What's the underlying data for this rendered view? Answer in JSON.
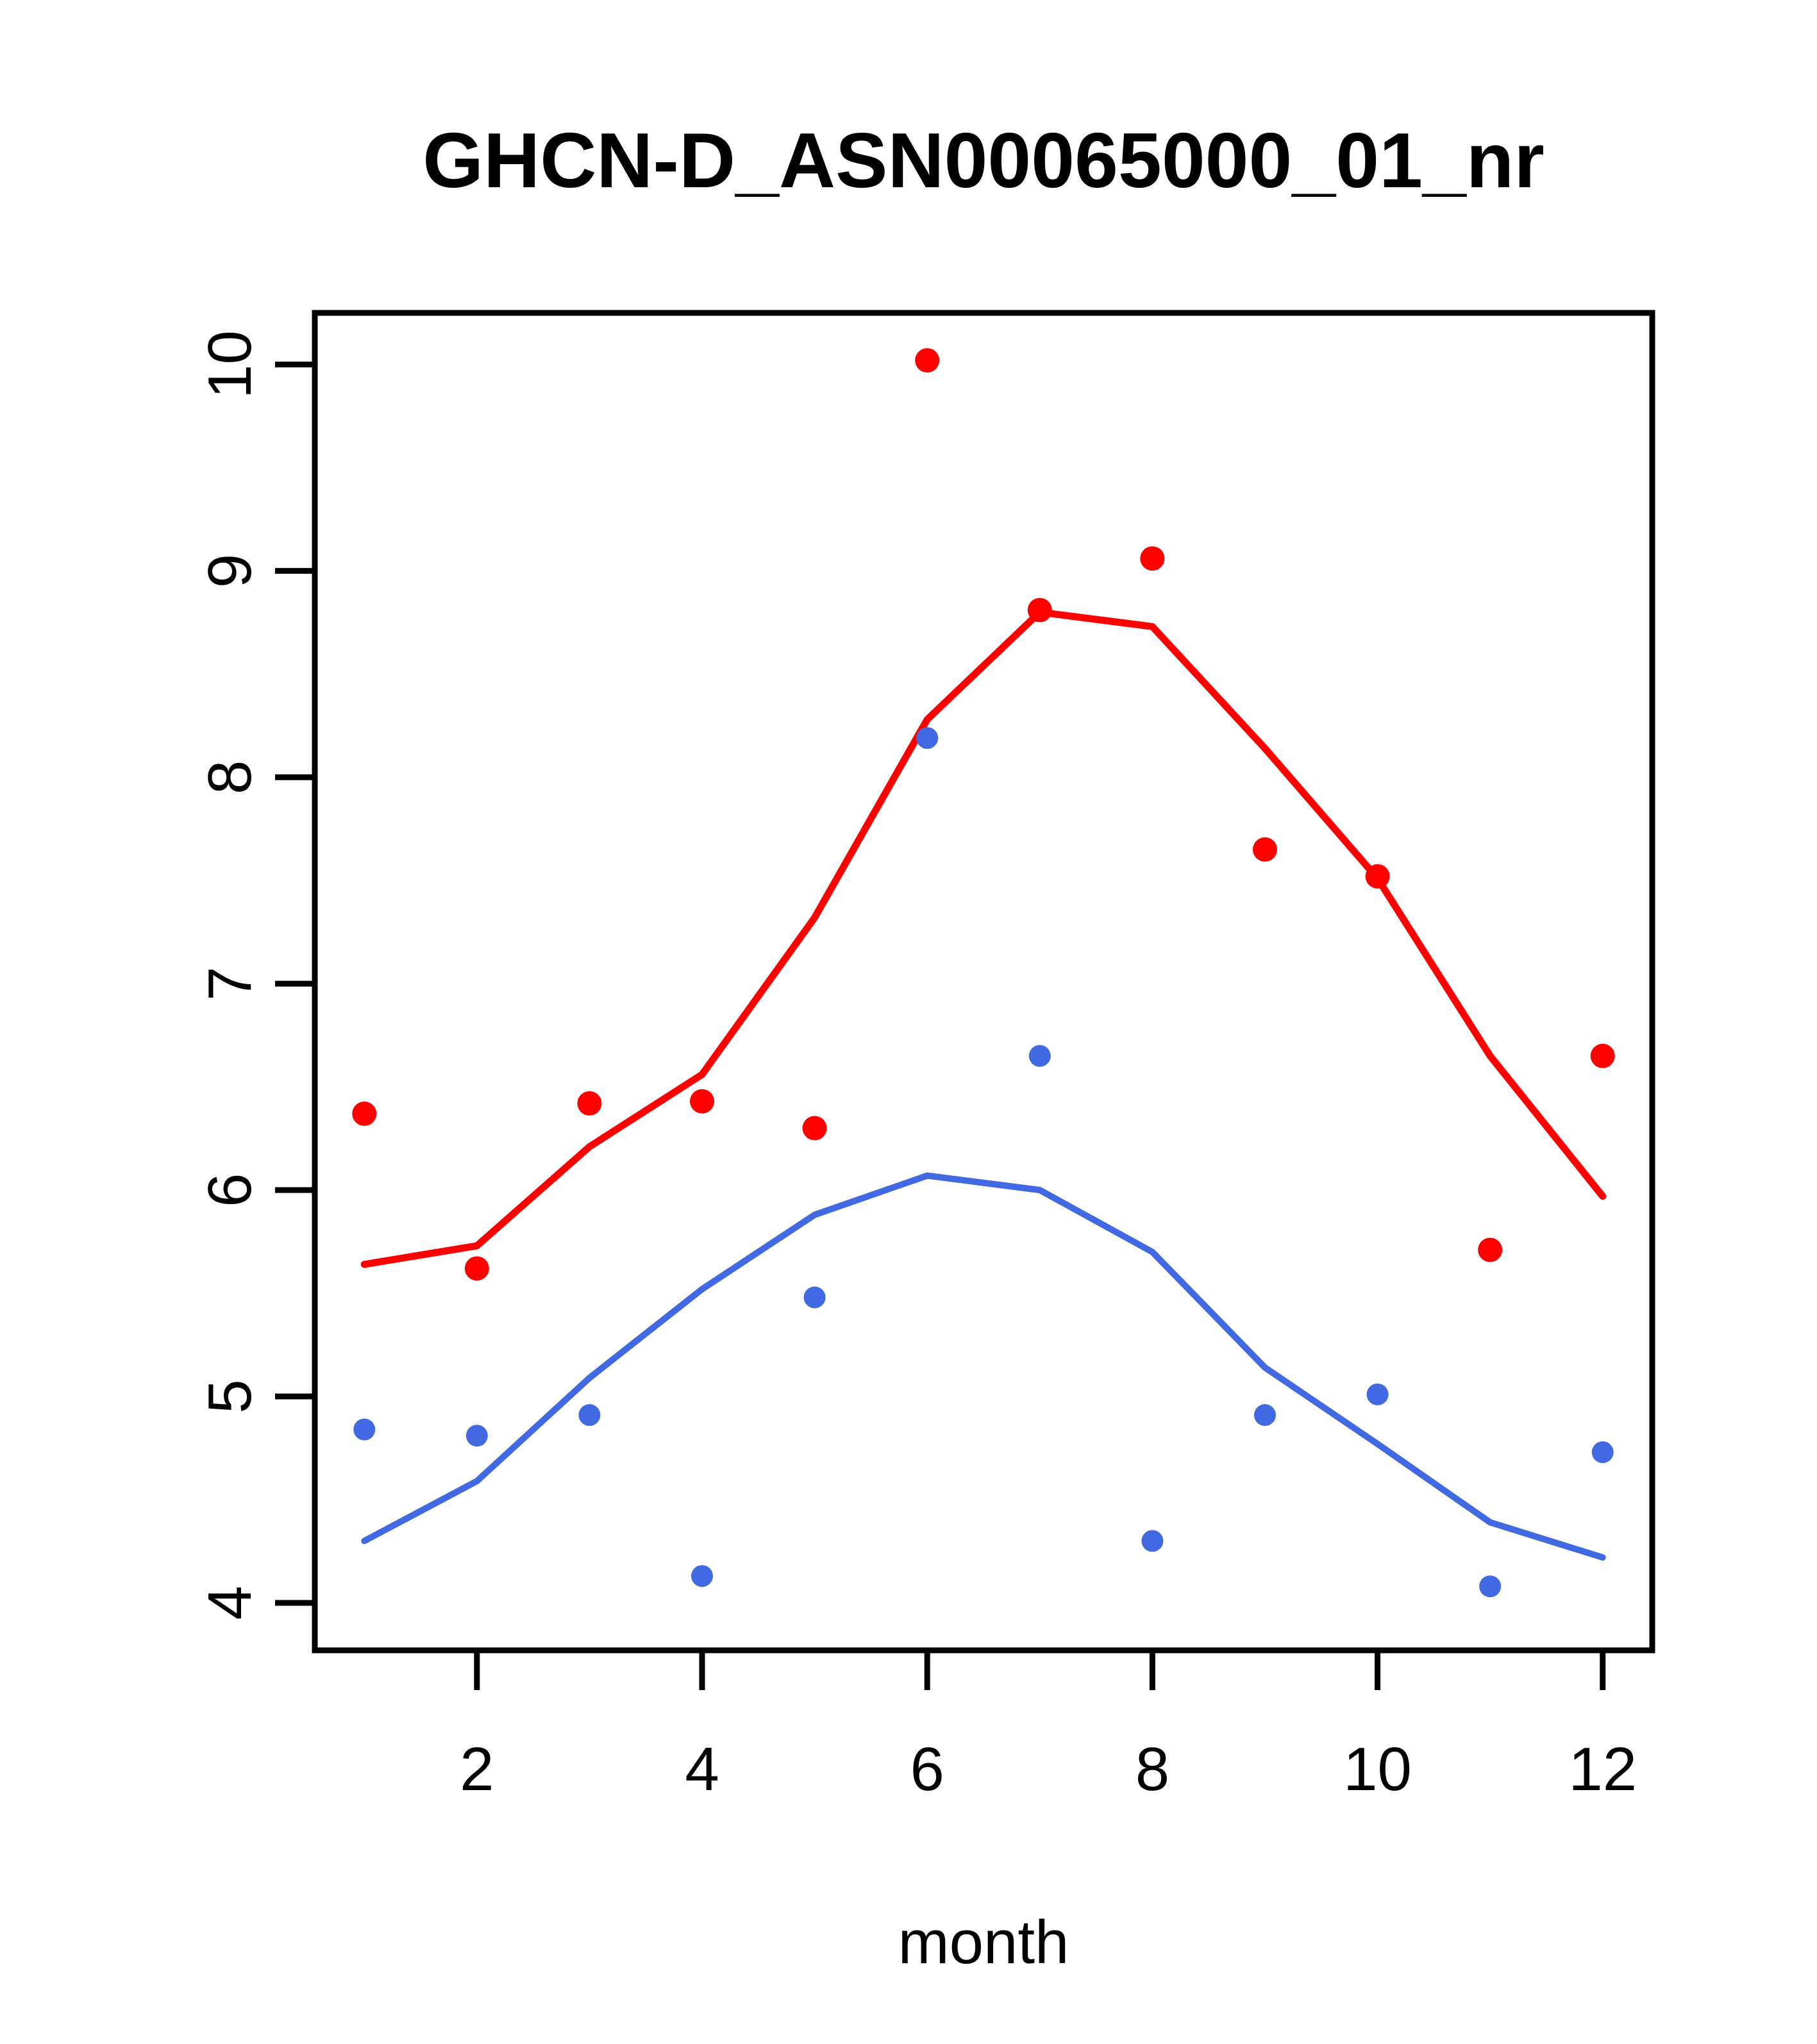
{
  "chart_data": {
    "type": "scatter",
    "title": "GHCN-D_ASN00065000_01_nr",
    "xlabel": "month",
    "ylabel": "",
    "x": [
      1,
      2,
      3,
      4,
      5,
      6,
      7,
      8,
      9,
      10,
      11,
      12
    ],
    "series": [
      {
        "name": "red-points",
        "kind": "points",
        "color": "#ff0000",
        "values": [
          6.37,
          5.62,
          6.42,
          6.43,
          6.3,
          10.02,
          8.81,
          9.06,
          7.65,
          7.52,
          5.71,
          6.65
        ]
      },
      {
        "name": "red-lowess",
        "kind": "line",
        "color": "#ff0000",
        "values": [
          5.64,
          5.73,
          6.21,
          6.56,
          7.32,
          8.28,
          8.8,
          8.73,
          8.14,
          7.51,
          6.65,
          5.97
        ]
      },
      {
        "name": "blue-points",
        "kind": "points",
        "color": "#4169e1",
        "values": [
          4.84,
          4.81,
          4.91,
          4.13,
          5.48,
          8.19,
          6.65,
          4.3,
          4.91,
          5.01,
          4.08,
          4.73
        ]
      },
      {
        "name": "blue-lowess",
        "kind": "line",
        "color": "#4169e1",
        "values": [
          4.3,
          4.59,
          5.09,
          5.52,
          5.88,
          6.07,
          6.0,
          5.7,
          5.14,
          4.77,
          4.39,
          4.22
        ]
      }
    ],
    "x_ticks": [
      2,
      4,
      6,
      8,
      10,
      12
    ],
    "y_ticks": [
      4,
      5,
      6,
      7,
      8,
      9,
      10
    ],
    "xlim": [
      0.56,
      12.44
    ],
    "ylim": [
      3.77,
      10.25
    ],
    "grid": false,
    "legend_position": null,
    "background": "#ffffff",
    "axis_color": "#000000"
  }
}
